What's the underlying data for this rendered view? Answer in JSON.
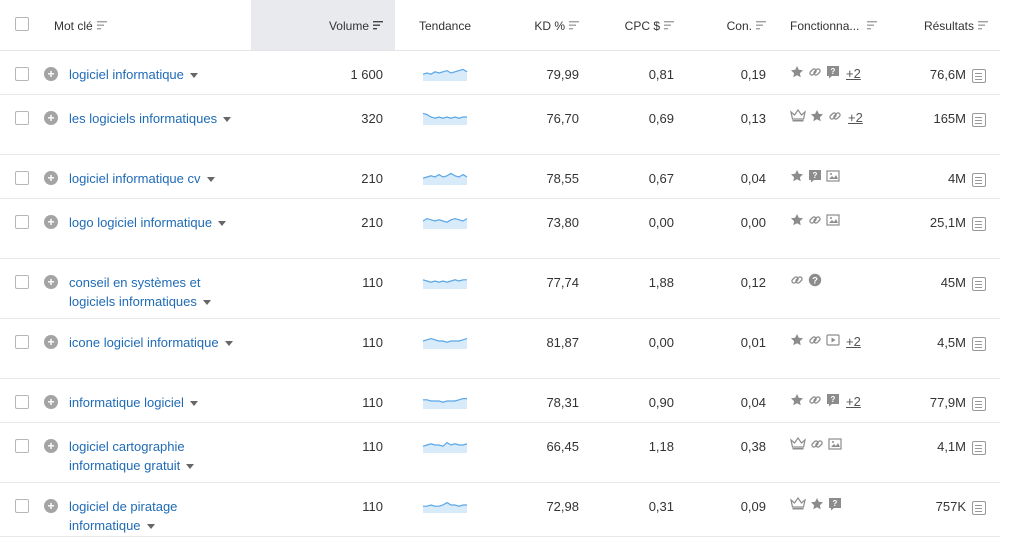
{
  "headers": {
    "keyword": "Mot clé",
    "volume": "Volume",
    "trend": "Tendance",
    "kd": "KD %",
    "cpc": "CPC $",
    "com": "Con.",
    "features": "Fonctionna...",
    "results": "Résultats"
  },
  "rows": [
    {
      "keyword": "logiciel informatique",
      "volume": "1 600",
      "kd": "79,99",
      "cpc": "0,81",
      "com": "0,19",
      "features": [
        "star-icon",
        "link-icon",
        "faq-icon"
      ],
      "more": "+2",
      "results": "76,6M",
      "trend": [
        4,
        5,
        4,
        6,
        5,
        6,
        7,
        5,
        6,
        7,
        8,
        6
      ]
    },
    {
      "keyword": "les logiciels informatiques",
      "volume": "320",
      "kd": "76,70",
      "cpc": "0,69",
      "com": "0,13",
      "features": [
        "crown-icon",
        "star-icon",
        "link-icon"
      ],
      "more": "+2",
      "results": "165M",
      "trend": [
        8,
        7,
        5,
        4,
        5,
        4,
        5,
        4,
        5,
        4,
        5,
        5
      ]
    },
    {
      "keyword": "logiciel informatique cv",
      "volume": "210",
      "kd": "78,55",
      "cpc": "0,67",
      "com": "0,04",
      "features": [
        "star-icon",
        "faq-icon",
        "image-icon"
      ],
      "more": "",
      "results": "4M",
      "trend": [
        4,
        5,
        6,
        5,
        7,
        5,
        6,
        8,
        6,
        5,
        7,
        5
      ]
    },
    {
      "keyword": "logo logiciel informatique",
      "volume": "210",
      "kd": "73,80",
      "cpc": "0,00",
      "com": "0,00",
      "features": [
        "star-icon",
        "link-icon",
        "image-icon"
      ],
      "more": "",
      "results": "25,1M",
      "trend": [
        5,
        7,
        6,
        5,
        6,
        5,
        4,
        6,
        7,
        6,
        5,
        7
      ]
    },
    {
      "keyword": "conseil en systèmes et logiciels informatiques",
      "volume": "110",
      "kd": "77,74",
      "cpc": "1,88",
      "com": "0,12",
      "features": [
        "link-icon",
        "question-icon"
      ],
      "more": "",
      "results": "45M",
      "trend": [
        6,
        5,
        4,
        5,
        4,
        5,
        4,
        5,
        6,
        5,
        6,
        6
      ]
    },
    {
      "keyword": "icone logiciel informatique",
      "volume": "110",
      "kd": "81,87",
      "cpc": "0,00",
      "com": "0,01",
      "features": [
        "star-icon",
        "link-icon",
        "video-icon"
      ],
      "more": "+2",
      "results": "4,5M",
      "trend": [
        5,
        6,
        7,
        6,
        5,
        5,
        4,
        5,
        5,
        5,
        6,
        7
      ]
    },
    {
      "keyword": "informatique logiciel",
      "volume": "110",
      "kd": "78,31",
      "cpc": "0,90",
      "com": "0,04",
      "features": [
        "star-icon",
        "link-icon",
        "faq-icon"
      ],
      "more": "+2",
      "results": "77,9M",
      "trend": [
        6,
        6,
        5,
        5,
        5,
        4,
        5,
        5,
        5,
        6,
        7,
        7
      ]
    },
    {
      "keyword": "logiciel cartographie informatique gratuit",
      "volume": "110",
      "kd": "66,45",
      "cpc": "1,18",
      "com": "0,38",
      "features": [
        "crown-icon",
        "link-icon",
        "image-icon"
      ],
      "more": "",
      "results": "4,1M",
      "trend": [
        4,
        5,
        6,
        5,
        5,
        4,
        7,
        5,
        6,
        5,
        5,
        6
      ]
    },
    {
      "keyword": "logiciel de piratage informatique",
      "volume": "110",
      "kd": "72,98",
      "cpc": "0,31",
      "com": "0,09",
      "features": [
        "crown-icon",
        "star-icon",
        "faq-icon"
      ],
      "more": "",
      "results": "757K",
      "trend": [
        4,
        4,
        5,
        4,
        4,
        5,
        7,
        5,
        5,
        4,
        5,
        5
      ]
    }
  ]
}
